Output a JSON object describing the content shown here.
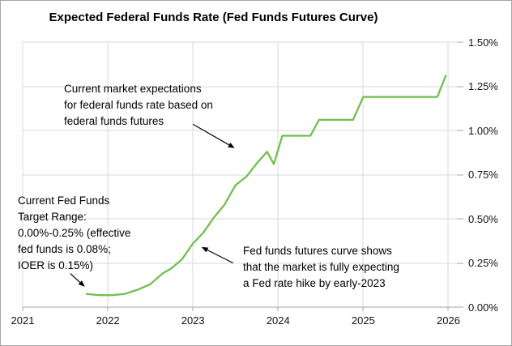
{
  "title": "Expected Federal Funds Rate (Fed Funds Futures Curve)",
  "colors": {
    "line": "#6fbe4b",
    "gridline": "#d9d9d9",
    "axis": "#a6a6a6",
    "arrow": "#000000",
    "text": "#000000",
    "border": "#a6a6a6"
  },
  "chart_data": {
    "type": "line",
    "title": "Expected Federal Funds Rate (Fed Funds Futures Curve)",
    "grid": true,
    "legend_position": "none",
    "x_range": [
      2021,
      2026.1
    ],
    "y_range": [
      0,
      1.5
    ],
    "x_ticks": [
      2021,
      2022,
      2023,
      2024,
      2025,
      2026
    ],
    "x_tick_labels": [
      "2021",
      "2022",
      "2023",
      "2024",
      "2025",
      "2026"
    ],
    "y_ticks": [
      0,
      0.25,
      0.5,
      0.75,
      1.0,
      1.25,
      1.5
    ],
    "y_tick_labels": [
      "0.00%",
      "0.25%",
      "0.50%",
      "0.75%",
      "1.00%",
      "1.25%",
      "1.50%"
    ],
    "xlabel": "",
    "ylabel": "",
    "series": [
      {
        "name": "Fed funds futures curve",
        "color": "#6fbe4b",
        "points": [
          [
            2021.75,
            0.075
          ],
          [
            2021.9,
            0.068
          ],
          [
            2022.05,
            0.068
          ],
          [
            2022.2,
            0.075
          ],
          [
            2022.36,
            0.1
          ],
          [
            2022.5,
            0.13
          ],
          [
            2022.64,
            0.19
          ],
          [
            2022.75,
            0.22
          ],
          [
            2022.87,
            0.27
          ],
          [
            2023.0,
            0.36
          ],
          [
            2023.12,
            0.42
          ],
          [
            2023.25,
            0.51
          ],
          [
            2023.37,
            0.58
          ],
          [
            2023.5,
            0.69
          ],
          [
            2023.63,
            0.74
          ],
          [
            2023.76,
            0.82
          ],
          [
            2023.87,
            0.88
          ],
          [
            2023.95,
            0.81
          ],
          [
            2024.05,
            0.97
          ],
          [
            2024.38,
            0.97
          ],
          [
            2024.48,
            1.06
          ],
          [
            2024.88,
            1.06
          ],
          [
            2025.0,
            1.19
          ],
          [
            2025.87,
            1.19
          ],
          [
            2025.97,
            1.31
          ]
        ]
      }
    ],
    "annotations": [
      {
        "id": "market-expectations",
        "lines": [
          "Current market expectations",
          "for federal funds rate based on",
          "federal funds futures"
        ],
        "arrow": {
          "from": [
            2023.0,
            1.035
          ],
          "to": [
            2023.49,
            0.9
          ]
        }
      },
      {
        "id": "target-range",
        "lines": [
          "Current Fed Funds",
          "Target Range:",
          "0.00%-0.25% (effective",
          "fed funds is 0.08%;",
          "IOER is 0.15%)"
        ],
        "arrow": {
          "from": [
            2021.56,
            0.19
          ],
          "to": [
            2021.73,
            0.115
          ]
        }
      },
      {
        "id": "rate-hike",
        "lines": [
          "Fed funds futures curve shows",
          "that the market is fully expecting",
          "a Fed rate hike by early-2023"
        ],
        "arrow": {
          "from": [
            2023.47,
            0.25
          ],
          "to": [
            2023.1,
            0.34
          ]
        }
      }
    ]
  }
}
